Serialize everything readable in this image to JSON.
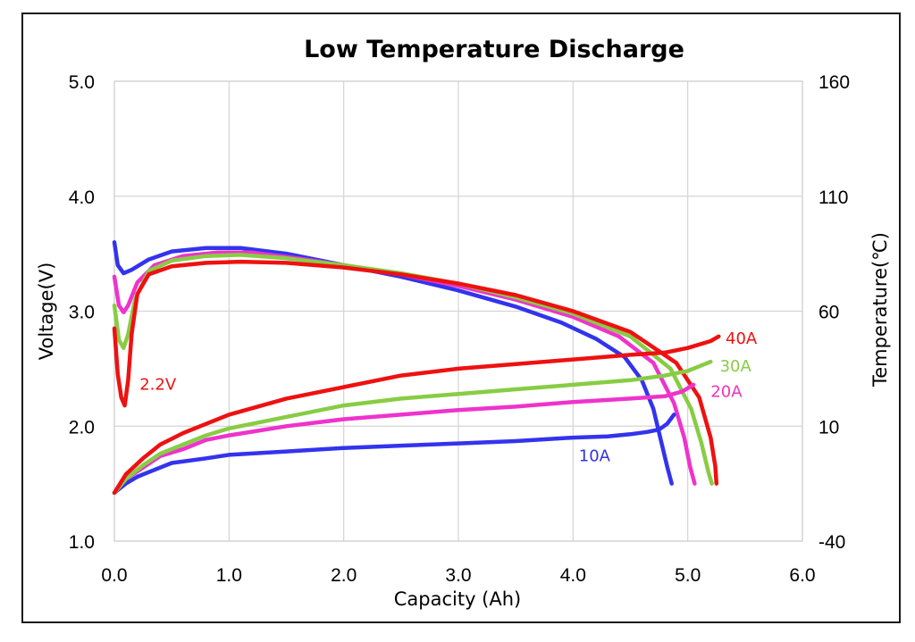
{
  "chart_data": {
    "type": "line",
    "title": "Low Temperature Discharge",
    "xlabel": "Capacity (Ah)",
    "ylabel": "Voltage(V)",
    "y2label": "Temperature(℃)",
    "xlim": [
      0,
      6
    ],
    "ylim": [
      1,
      5
    ],
    "y2lim": [
      -40,
      160
    ],
    "xticks": [
      "0.0",
      "1.0",
      "2.0",
      "3.0",
      "4.0",
      "5.0",
      "6.0"
    ],
    "yticks": [
      "1.0",
      "2.0",
      "3.0",
      "4.0",
      "5.0"
    ],
    "y2ticks": [
      "-40",
      "10",
      "60",
      "110",
      "160"
    ],
    "grid": true,
    "annotations": [
      {
        "text": "2.2V",
        "color": "#ee1111",
        "x": 0.22,
        "y": 2.37
      },
      {
        "text": "10A",
        "color": "#3333dd",
        "x": 4.05,
        "y": 1.75
      },
      {
        "text": "20A",
        "color": "#ee33bb",
        "x": 5.2,
        "y": 2.31
      },
      {
        "text": "30A",
        "color": "#88cc44",
        "x": 5.28,
        "y": 2.53
      },
      {
        "text": "40A",
        "color": "#ee1111",
        "x": 5.33,
        "y": 2.77
      }
    ],
    "series": [
      {
        "name": "10A voltage",
        "axis": "left",
        "color": "#3333ee",
        "x": [
          0,
          0.03,
          0.08,
          0.15,
          0.3,
          0.5,
          0.8,
          1.1,
          1.5,
          2.0,
          2.5,
          3.0,
          3.5,
          3.9,
          4.2,
          4.45,
          4.6,
          4.7,
          4.76,
          4.82,
          4.86
        ],
        "y": [
          3.6,
          3.4,
          3.33,
          3.36,
          3.45,
          3.52,
          3.55,
          3.55,
          3.5,
          3.4,
          3.3,
          3.18,
          3.04,
          2.9,
          2.76,
          2.6,
          2.4,
          2.15,
          1.9,
          1.65,
          1.5
        ]
      },
      {
        "name": "20A voltage",
        "axis": "left",
        "color": "#ee33cc",
        "x": [
          0,
          0.04,
          0.08,
          0.12,
          0.2,
          0.35,
          0.6,
          0.9,
          1.2,
          1.6,
          2.0,
          2.5,
          3.0,
          3.5,
          4.0,
          4.4,
          4.7,
          4.88,
          4.97,
          5.02,
          5.06
        ],
        "y": [
          3.3,
          3.05,
          2.99,
          3.05,
          3.25,
          3.4,
          3.48,
          3.51,
          3.51,
          3.46,
          3.4,
          3.32,
          3.22,
          3.1,
          2.95,
          2.78,
          2.55,
          2.2,
          1.9,
          1.65,
          1.5
        ]
      },
      {
        "name": "30A voltage",
        "axis": "left",
        "color": "#88cc44",
        "x": [
          0,
          0.04,
          0.08,
          0.12,
          0.18,
          0.3,
          0.5,
          0.8,
          1.1,
          1.5,
          2.0,
          2.5,
          3.0,
          3.5,
          4.0,
          4.5,
          4.85,
          5.03,
          5.12,
          5.18,
          5.21
        ],
        "y": [
          3.05,
          2.75,
          2.68,
          2.8,
          3.1,
          3.35,
          3.44,
          3.48,
          3.49,
          3.46,
          3.4,
          3.33,
          3.24,
          3.12,
          2.98,
          2.78,
          2.5,
          2.15,
          1.85,
          1.6,
          1.5
        ]
      },
      {
        "name": "40A voltage",
        "axis": "left",
        "color": "#ee1111",
        "x": [
          0,
          0.03,
          0.06,
          0.09,
          0.12,
          0.15,
          0.2,
          0.3,
          0.5,
          0.8,
          1.1,
          1.5,
          2.0,
          2.5,
          3.0,
          3.5,
          4.0,
          4.5,
          4.9,
          5.1,
          5.2,
          5.24,
          5.25
        ],
        "y": [
          2.85,
          2.45,
          2.25,
          2.18,
          2.4,
          2.8,
          3.15,
          3.32,
          3.39,
          3.42,
          3.43,
          3.42,
          3.38,
          3.32,
          3.24,
          3.14,
          3.0,
          2.82,
          2.55,
          2.25,
          1.9,
          1.65,
          1.5
        ]
      },
      {
        "name": "10A temperature",
        "axis": "right",
        "color": "#3333ee",
        "x": [
          0,
          0.1,
          0.2,
          0.35,
          0.5,
          0.8,
          1.0,
          1.5,
          2.0,
          2.5,
          3.0,
          3.5,
          4.0,
          4.3,
          4.5,
          4.65,
          4.75,
          4.82,
          4.88
        ],
        "y": [
          -19,
          -15,
          -12,
          -9,
          -6,
          -4,
          -2.5,
          -1,
          0.5,
          1.5,
          2.5,
          3.5,
          5,
          5.5,
          6.5,
          7.5,
          8.5,
          11,
          15
        ]
      },
      {
        "name": "20A temperature",
        "axis": "right",
        "color": "#ee33cc",
        "x": [
          0,
          0.1,
          0.25,
          0.4,
          0.6,
          0.8,
          1.0,
          1.5,
          2.0,
          2.5,
          3.0,
          3.5,
          4.0,
          4.5,
          4.8,
          4.95,
          5.05
        ],
        "y": [
          -19,
          -13,
          -8,
          -3,
          0,
          4,
          6,
          10,
          13,
          15,
          17,
          18.5,
          20.5,
          22,
          23,
          25,
          28
        ]
      },
      {
        "name": "30A temperature",
        "axis": "right",
        "color": "#88cc44",
        "x": [
          0,
          0.1,
          0.25,
          0.4,
          0.6,
          0.8,
          1.0,
          1.5,
          2.0,
          2.5,
          3.0,
          3.5,
          4.0,
          4.5,
          4.8,
          5.0,
          5.1,
          5.2
        ],
        "y": [
          -19,
          -13,
          -7,
          -2,
          2,
          6,
          9,
          14,
          19,
          22,
          24,
          26,
          28,
          30,
          32,
          34,
          36,
          38
        ]
      },
      {
        "name": "40A temperature",
        "axis": "right",
        "color": "#ee1111",
        "x": [
          0,
          0.1,
          0.25,
          0.4,
          0.6,
          0.8,
          1.0,
          1.5,
          2.0,
          2.5,
          3.0,
          3.5,
          4.0,
          4.5,
          4.8,
          5.0,
          5.2,
          5.27
        ],
        "y": [
          -19,
          -11,
          -4,
          2,
          7,
          11,
          15,
          22,
          27,
          32,
          35,
          37,
          39,
          41,
          42,
          44,
          47,
          49
        ]
      }
    ]
  }
}
